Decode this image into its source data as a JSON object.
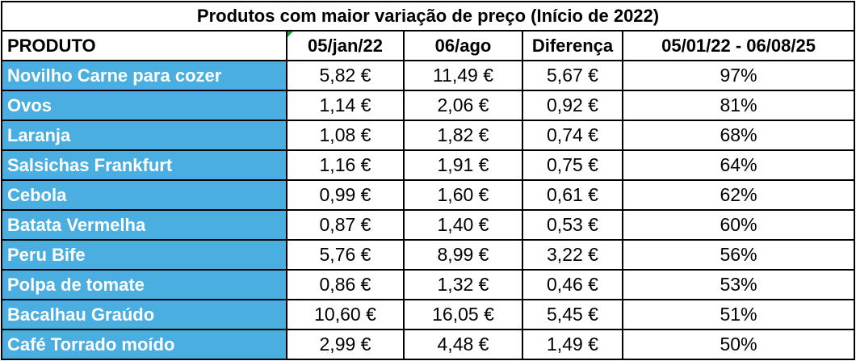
{
  "table": {
    "title": "Produtos com maior variação de preço (Início de 2022)",
    "headers": {
      "product": "PRODUTO",
      "date1": "05/jan/22",
      "date2": "06/ago",
      "diff": "Diferença",
      "variation": "05/01/22 - 06/08/25"
    },
    "colors": {
      "product_fill": "#4aaee0",
      "product_text": "#ffffff",
      "corner_marker": "#1f9a45"
    },
    "rows": [
      {
        "product": "Novilho Carne para cozer",
        "price1": "5,82 €",
        "price2": "11,49 €",
        "diff": "5,67 €",
        "pct": "97%"
      },
      {
        "product": "Ovos",
        "price1": "1,14 €",
        "price2": "2,06 €",
        "diff": "0,92 €",
        "pct": "81%"
      },
      {
        "product": "Laranja",
        "price1": "1,08 €",
        "price2": "1,82 €",
        "diff": "0,74 €",
        "pct": "68%"
      },
      {
        "product": "Salsichas Frankfurt",
        "price1": "1,16 €",
        "price2": "1,91 €",
        "diff": "0,75 €",
        "pct": "64%"
      },
      {
        "product": "Cebola",
        "price1": "0,99 €",
        "price2": "1,60 €",
        "diff": "0,61 €",
        "pct": "62%"
      },
      {
        "product": "Batata Vermelha",
        "price1": "0,87 €",
        "price2": "1,40 €",
        "diff": "0,53 €",
        "pct": "60%"
      },
      {
        "product": "Peru Bife",
        "price1": "5,76 €",
        "price2": "8,99 €",
        "diff": "3,22 €",
        "pct": "56%"
      },
      {
        "product": "Polpa de tomate",
        "price1": "0,86 €",
        "price2": "1,32 €",
        "diff": "0,46 €",
        "pct": "53%"
      },
      {
        "product": "Bacalhau Graúdo",
        "price1": "10,60 €",
        "price2": "16,05 €",
        "diff": "5,45 €",
        "pct": "51%"
      },
      {
        "product": "Café Torrado moído",
        "price1": "2,99 €",
        "price2": "4,48 €",
        "diff": "1,49 €",
        "pct": "50%"
      }
    ]
  }
}
